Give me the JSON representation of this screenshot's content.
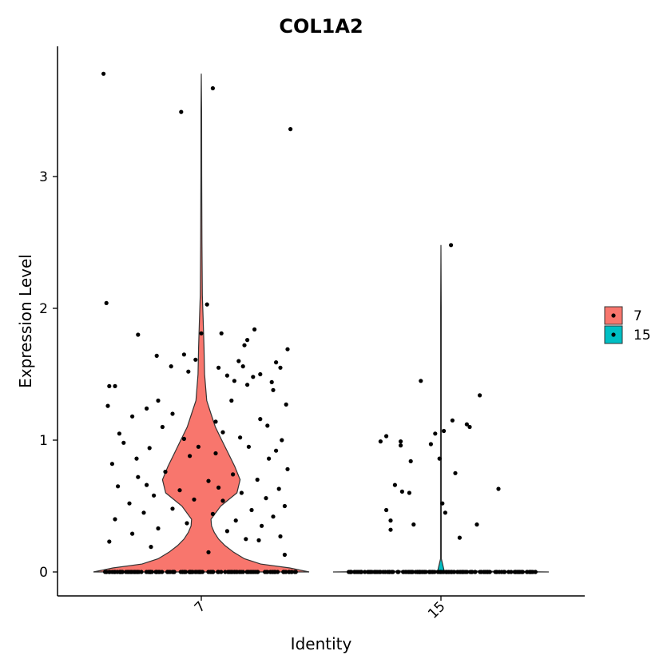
{
  "chart_data": {
    "type": "violin",
    "title": "COL1A2",
    "xlabel": "Identity",
    "ylabel": "Expression Level",
    "categories": [
      "7",
      "15"
    ],
    "ylim": [
      -0.18,
      3.95
    ],
    "yticks": [
      0,
      1,
      2,
      3
    ],
    "legend": {
      "position": "right",
      "entries": [
        "7",
        "15"
      ]
    },
    "colors": {
      "7": "#F8766D",
      "15": "#00BFC4"
    },
    "grid": false,
    "violins": [
      {
        "category": "7",
        "max": 3.78,
        "density": [
          [
            0.0,
            1.0
          ],
          [
            0.03,
            0.82
          ],
          [
            0.06,
            0.55
          ],
          [
            0.1,
            0.4
          ],
          [
            0.15,
            0.3
          ],
          [
            0.2,
            0.22
          ],
          [
            0.25,
            0.16
          ],
          [
            0.3,
            0.12
          ],
          [
            0.35,
            0.095
          ],
          [
            0.4,
            0.09
          ],
          [
            0.5,
            0.18
          ],
          [
            0.6,
            0.33
          ],
          [
            0.7,
            0.36
          ],
          [
            0.8,
            0.31
          ],
          [
            0.9,
            0.25
          ],
          [
            1.0,
            0.19
          ],
          [
            1.1,
            0.13
          ],
          [
            1.2,
            0.09
          ],
          [
            1.3,
            0.05
          ],
          [
            1.5,
            0.03
          ],
          [
            1.7,
            0.025
          ],
          [
            1.9,
            0.018
          ],
          [
            2.1,
            0.01
          ],
          [
            2.5,
            0.006
          ],
          [
            3.0,
            0.004
          ],
          [
            3.5,
            0.003
          ],
          [
            3.78,
            0.0
          ]
        ]
      },
      {
        "category": "15",
        "max": 2.48,
        "density": [
          [
            0.0,
            1.0
          ],
          [
            0.005,
            0.5
          ],
          [
            0.01,
            0.03
          ],
          [
            0.1,
            0.004
          ],
          [
            1.0,
            0.004
          ],
          [
            2.0,
            0.003
          ],
          [
            2.48,
            0.0
          ]
        ]
      }
    ],
    "points": {
      "7": {
        "nonzero": [
          [
            -0.68,
            3.78
          ],
          [
            0.08,
            3.67
          ],
          [
            -0.14,
            3.49
          ],
          [
            0.62,
            3.36
          ],
          [
            -0.66,
            2.04
          ],
          [
            0.04,
            2.03
          ],
          [
            -0.44,
            1.8
          ],
          [
            0.0,
            1.81
          ],
          [
            0.14,
            1.81
          ],
          [
            0.37,
            1.84
          ],
          [
            0.32,
            1.76
          ],
          [
            0.3,
            1.72
          ],
          [
            -0.31,
            1.64
          ],
          [
            -0.12,
            1.65
          ],
          [
            0.26,
            1.6
          ],
          [
            0.52,
            1.59
          ],
          [
            0.6,
            1.69
          ],
          [
            -0.21,
            1.56
          ],
          [
            0.55,
            1.55
          ],
          [
            -0.04,
            1.61
          ],
          [
            -0.64,
            1.41
          ],
          [
            -0.6,
            1.41
          ],
          [
            0.32,
            1.42
          ],
          [
            -0.09,
            1.52
          ],
          [
            0.18,
            1.49
          ],
          [
            0.41,
            1.5
          ],
          [
            0.29,
            1.56
          ],
          [
            0.49,
            1.44
          ],
          [
            0.59,
            1.27
          ],
          [
            -0.38,
            1.24
          ],
          [
            -0.65,
            1.26
          ],
          [
            0.5,
            1.38
          ],
          [
            0.23,
            1.45
          ],
          [
            0.21,
            1.3
          ],
          [
            -0.3,
            1.3
          ],
          [
            0.36,
            1.48
          ],
          [
            0.12,
            1.55
          ],
          [
            -0.48,
            1.18
          ],
          [
            -0.2,
            1.2
          ],
          [
            0.15,
            1.06
          ],
          [
            0.41,
            1.16
          ],
          [
            0.56,
            1.0
          ],
          [
            -0.54,
            0.98
          ],
          [
            -0.36,
            0.94
          ],
          [
            0.33,
            0.95
          ],
          [
            0.1,
            0.9
          ],
          [
            -0.08,
            0.88
          ],
          [
            0.47,
            0.86
          ],
          [
            -0.62,
            0.82
          ],
          [
            0.6,
            0.78
          ],
          [
            -0.25,
            0.76
          ],
          [
            0.22,
            0.74
          ],
          [
            -0.44,
            0.72
          ],
          [
            0.39,
            0.7
          ],
          [
            0.05,
            0.69
          ],
          [
            -0.58,
            0.65
          ],
          [
            0.54,
            0.63
          ],
          [
            -0.15,
            0.62
          ],
          [
            0.28,
            0.6
          ],
          [
            -0.33,
            0.58
          ],
          [
            0.45,
            0.56
          ],
          [
            -0.05,
            0.55
          ],
          [
            0.15,
            0.54
          ],
          [
            -0.5,
            0.52
          ],
          [
            0.58,
            0.5
          ],
          [
            -0.2,
            0.48
          ],
          [
            0.35,
            0.47
          ],
          [
            -0.4,
            0.45
          ],
          [
            0.08,
            0.44
          ],
          [
            0.5,
            0.42
          ],
          [
            -0.6,
            0.4
          ],
          [
            0.24,
            0.39
          ],
          [
            -0.1,
            0.37
          ],
          [
            0.42,
            0.35
          ],
          [
            -0.3,
            0.33
          ],
          [
            0.18,
            0.31
          ],
          [
            -0.48,
            0.29
          ],
          [
            0.55,
            0.27
          ],
          [
            0.31,
            0.25
          ],
          [
            0.4,
            0.24
          ],
          [
            -0.64,
            0.23
          ],
          [
            0.05,
            0.15
          ],
          [
            0.58,
            0.13
          ],
          [
            -0.35,
            0.19
          ],
          [
            -0.57,
            1.05
          ],
          [
            -0.27,
            1.1
          ],
          [
            0.1,
            1.14
          ],
          [
            0.46,
            1.11
          ],
          [
            -0.12,
            1.01
          ],
          [
            0.27,
            1.02
          ],
          [
            -0.45,
            0.86
          ],
          [
            0.52,
            0.92
          ],
          [
            -0.02,
            0.95
          ],
          [
            -0.38,
            0.66
          ],
          [
            0.12,
            0.64
          ]
        ],
        "zeros": 150
      },
      "15": {
        "nonzero": [
          [
            0.07,
            2.48
          ],
          [
            -0.14,
            1.45
          ],
          [
            0.27,
            1.34
          ],
          [
            -0.38,
            1.03
          ],
          [
            0.02,
            1.07
          ],
          [
            0.08,
            1.15
          ],
          [
            0.18,
            1.12
          ],
          [
            0.2,
            1.1
          ],
          [
            -0.42,
            0.99
          ],
          [
            -0.28,
            0.96
          ],
          [
            -0.04,
            1.05
          ],
          [
            -0.07,
            0.97
          ],
          [
            -0.28,
            0.99
          ],
          [
            -0.21,
            0.84
          ],
          [
            -0.01,
            0.86
          ],
          [
            0.1,
            0.75
          ],
          [
            -0.32,
            0.66
          ],
          [
            -0.27,
            0.61
          ],
          [
            -0.22,
            0.6
          ],
          [
            0.4,
            0.63
          ],
          [
            -0.38,
            0.47
          ],
          [
            -0.35,
            0.39
          ],
          [
            -0.35,
            0.32
          ],
          [
            -0.19,
            0.36
          ],
          [
            0.01,
            0.52
          ],
          [
            0.03,
            0.45
          ],
          [
            0.13,
            0.26
          ],
          [
            0.25,
            0.36
          ]
        ],
        "zeros": 160
      }
    }
  }
}
